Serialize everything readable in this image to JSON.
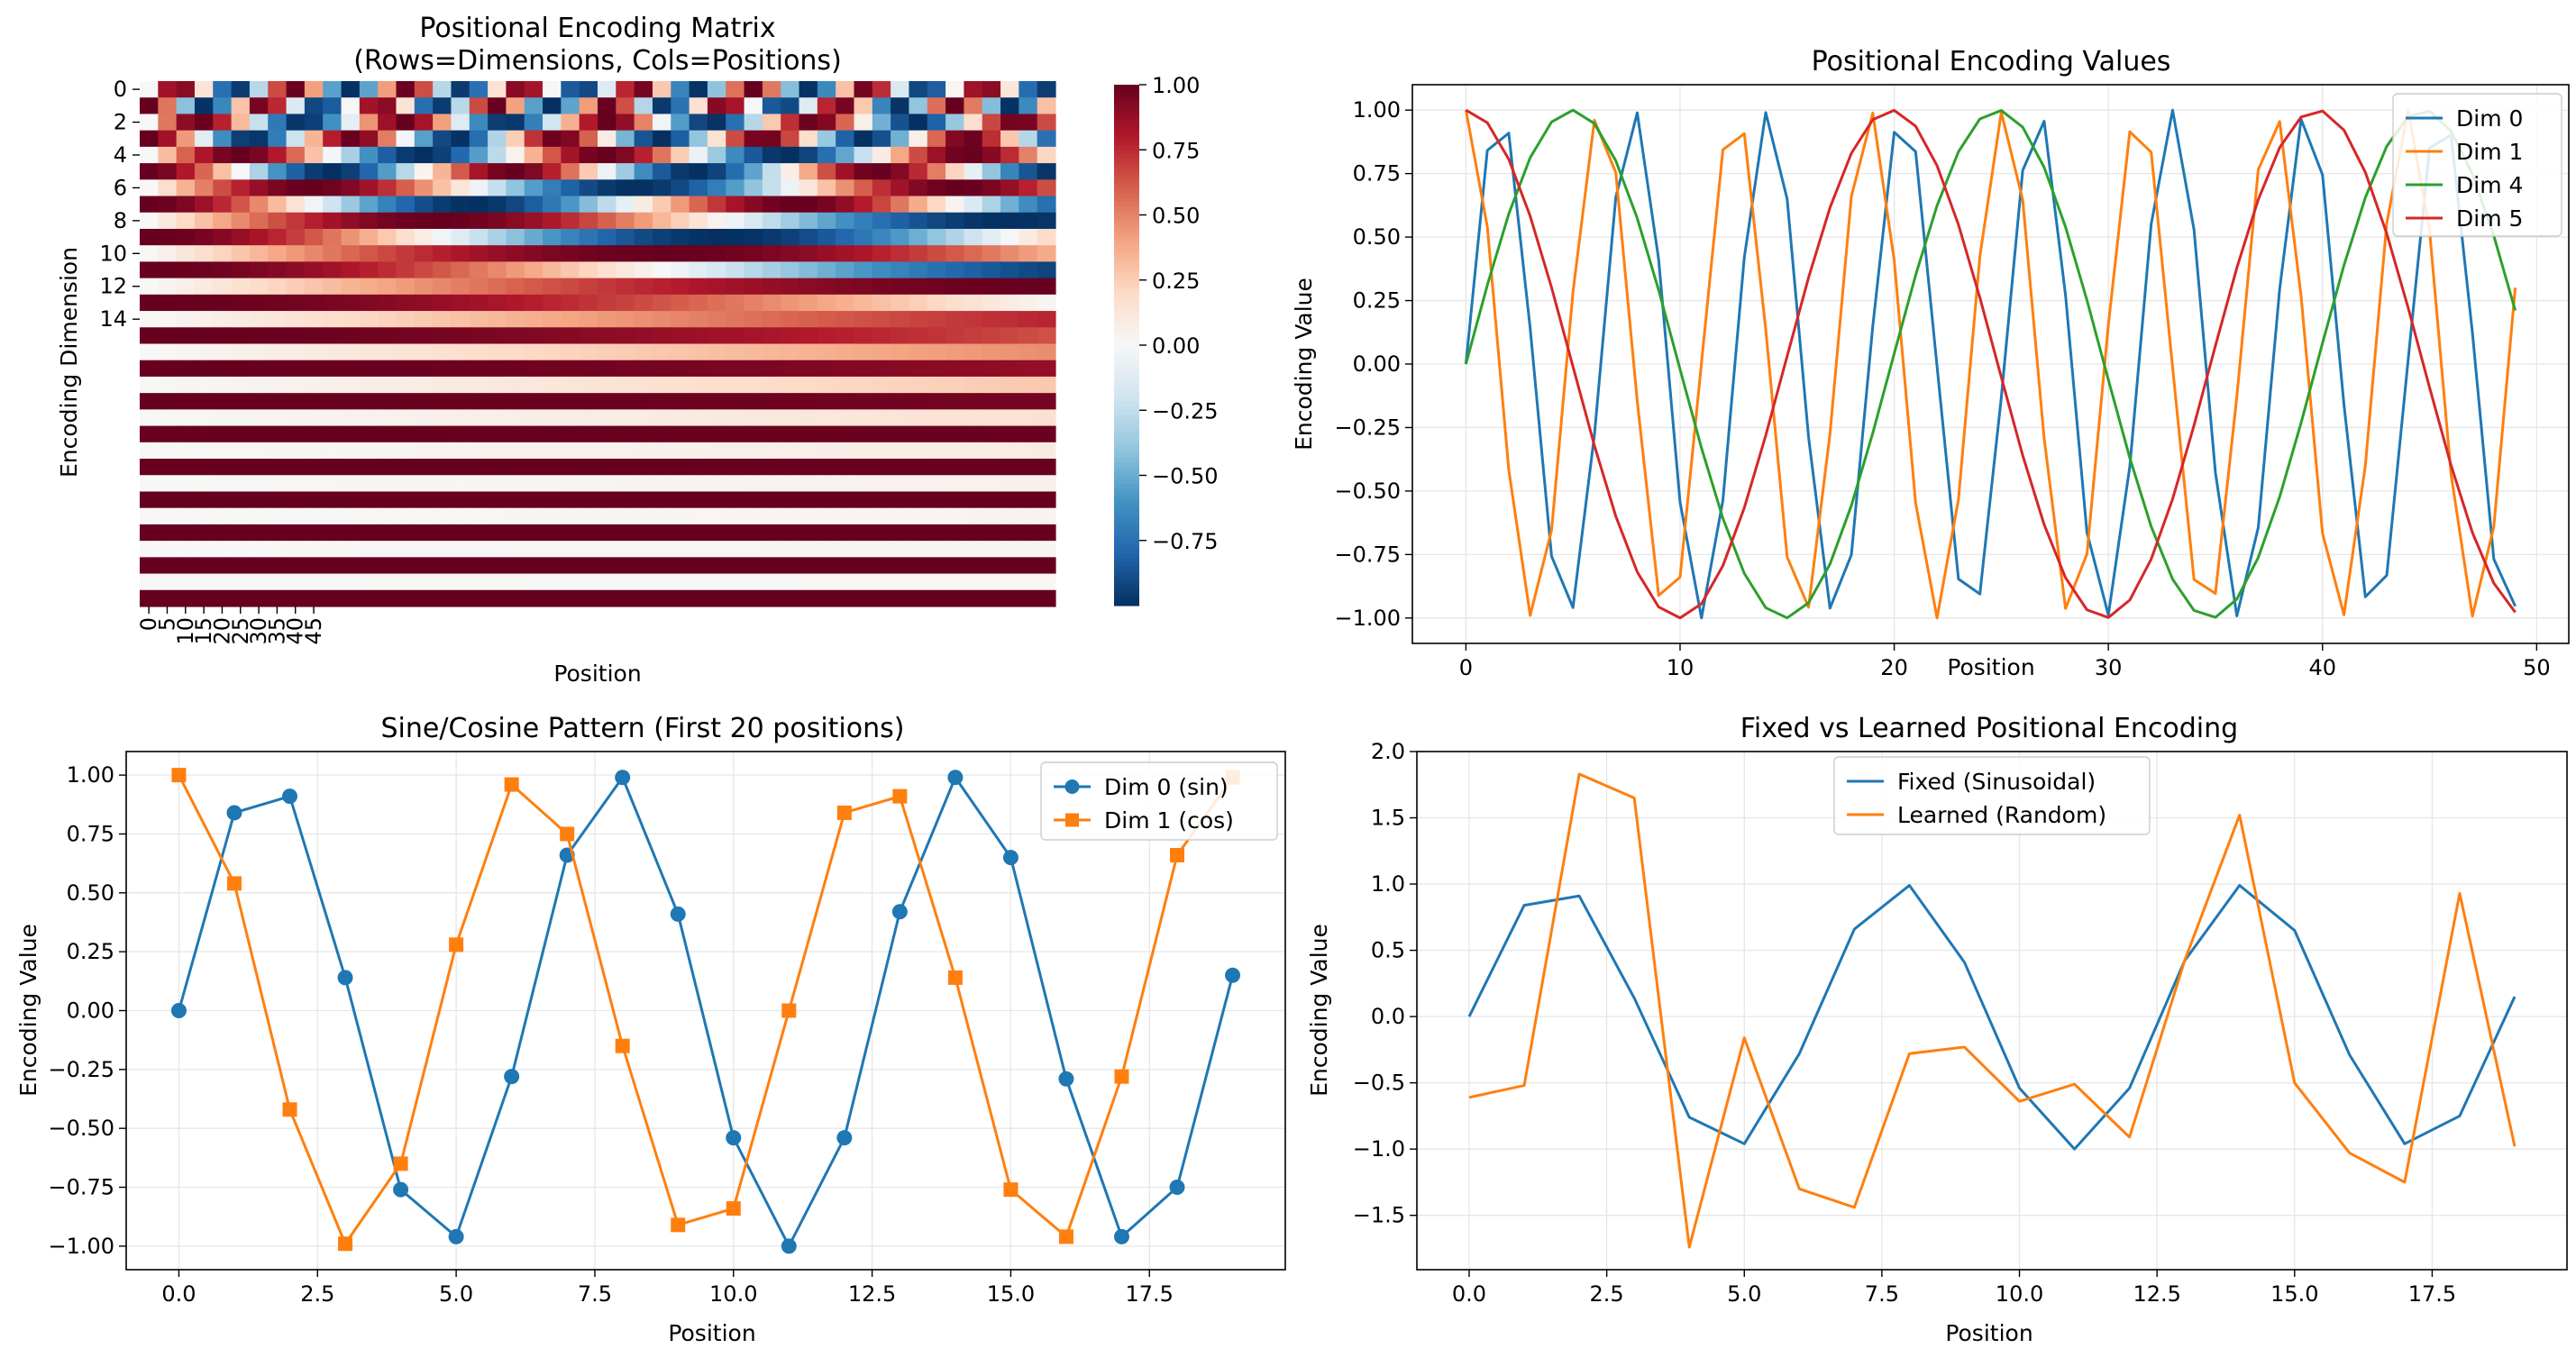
{
  "figure": {
    "heatmap": {
      "type": "heatmap",
      "title_line1": "Positional Encoding Matrix",
      "title_line2": "(Rows=Dimensions, Cols=Positions)",
      "xlabel": "Position",
      "ylabel": "Encoding Dimension",
      "n_rows": 32,
      "n_cols": 50,
      "d_model": 32,
      "ytick_labels": [
        "0",
        "2",
        "4",
        "6",
        "8",
        "10",
        "12",
        "14"
      ],
      "xtick_labels": [
        "0",
        "5",
        "10",
        "15",
        "20",
        "25",
        "30",
        "35",
        "40",
        "45"
      ],
      "colormap": "RdBu_r",
      "colorbar": {
        "ticks": [
          "1.00",
          "0.75",
          "0.50",
          "0.25",
          "0.00",
          "−0.25",
          "−0.50",
          "−0.75"
        ],
        "values": [
          1.0,
          0.75,
          0.5,
          0.25,
          0.0,
          -0.25,
          -0.5,
          -0.75
        ],
        "range": [
          -1.0,
          1.0
        ]
      }
    },
    "values_plot": {
      "type": "line",
      "title": "Positional Encoding Values",
      "xlabel": "Position",
      "ylabel": "Encoding Value",
      "xlim": [
        -2.5,
        51.5
      ],
      "ylim": [
        -1.1,
        1.1
      ],
      "xticks": [
        0,
        10,
        20,
        30,
        40,
        50
      ],
      "xtick_labels": [
        "0",
        "10",
        "20",
        "30",
        "40",
        "50"
      ],
      "yticks": [
        1.0,
        0.75,
        0.5,
        0.25,
        0.0,
        -0.25,
        -0.5,
        -0.75,
        -1.0
      ],
      "ytick_labels": [
        "1.00",
        "0.75",
        "0.50",
        "0.25",
        "0.00",
        "−0.25",
        "−0.50",
        "−0.75",
        "−1.00"
      ],
      "grid": true,
      "legend": "top-right",
      "positions": 50,
      "series": [
        {
          "name": "Dim 0",
          "color": "#1f77b4",
          "func": "sin",
          "freq_exp": 0
        },
        {
          "name": "Dim 1",
          "color": "#ff7f0e",
          "func": "cos",
          "freq_exp": 0
        },
        {
          "name": "Dim 4",
          "color": "#2ca02c",
          "func": "sin",
          "freq_exp": 4
        },
        {
          "name": "Dim 5",
          "color": "#d62728",
          "func": "cos",
          "freq_exp": 4
        }
      ]
    },
    "sincos_plot": {
      "type": "line",
      "title": "Sine/Cosine Pattern (First 20 positions)",
      "xlabel": "Position",
      "ylabel": "Encoding Value",
      "xlim": [
        -0.95,
        19.95
      ],
      "ylim": [
        -1.1,
        1.1
      ],
      "xticks": [
        0,
        2.5,
        5,
        7.5,
        10,
        12.5,
        15,
        17.5
      ],
      "xtick_labels": [
        "0.0",
        "2.5",
        "5.0",
        "7.5",
        "10.0",
        "12.5",
        "15.0",
        "17.5"
      ],
      "yticks": [
        1.0,
        0.75,
        0.5,
        0.25,
        0.0,
        -0.25,
        -0.5,
        -0.75,
        -1.0
      ],
      "ytick_labels": [
        "1.00",
        "0.75",
        "0.50",
        "0.25",
        "0.00",
        "−0.25",
        "−0.50",
        "−0.75",
        "−1.00"
      ],
      "grid": true,
      "legend": "top-right",
      "x": [
        0,
        1,
        2,
        3,
        4,
        5,
        6,
        7,
        8,
        9,
        10,
        11,
        12,
        13,
        14,
        15,
        16,
        17,
        18,
        19
      ],
      "series": [
        {
          "name": "Dim 0 (sin)",
          "color": "#1f77b4",
          "marker": "circle",
          "values": [
            0.0,
            0.84,
            0.91,
            0.14,
            -0.76,
            -0.96,
            -0.28,
            0.66,
            0.99,
            0.41,
            -0.54,
            -1.0,
            -0.54,
            0.42,
            0.99,
            0.65,
            -0.29,
            -0.96,
            -0.75,
            0.15
          ]
        },
        {
          "name": "Dim 1 (cos)",
          "color": "#ff7f0e",
          "marker": "square",
          "values": [
            1.0,
            0.54,
            -0.42,
            -0.99,
            -0.65,
            0.28,
            0.96,
            0.75,
            -0.15,
            -0.91,
            -0.84,
            0.0,
            0.84,
            0.91,
            0.14,
            -0.76,
            -0.96,
            -0.28,
            0.66,
            0.99
          ]
        }
      ]
    },
    "fixed_plot": {
      "type": "line",
      "title": "Fixed vs Learned Positional Encoding",
      "xlabel": "Position",
      "ylabel": "Encoding Value",
      "xlim": [
        -0.95,
        19.95
      ],
      "ylim": [
        -1.91,
        2.0
      ],
      "xticks": [
        0,
        2.5,
        5,
        7.5,
        10,
        12.5,
        15,
        17.5
      ],
      "xtick_labels": [
        "0.0",
        "2.5",
        "5.0",
        "7.5",
        "10.0",
        "12.5",
        "15.0",
        "17.5"
      ],
      "yticks": [
        2.0,
        1.5,
        1.0,
        0.5,
        0.0,
        -0.5,
        -1.0,
        -1.5
      ],
      "ytick_labels": [
        "2.0",
        "1.5",
        "1.0",
        "0.5",
        "0.0",
        "−0.5",
        "−1.0",
        "−1.5"
      ],
      "grid": true,
      "legend": "top-center",
      "x": [
        0,
        1,
        2,
        3,
        4,
        5,
        6,
        7,
        8,
        9,
        10,
        11,
        12,
        13,
        14,
        15,
        16,
        17,
        18,
        19
      ],
      "series": [
        {
          "name": "Fixed (Sinusoidal)",
          "color": "#1f77b4",
          "values": [
            0.0,
            0.84,
            0.91,
            0.14,
            -0.76,
            -0.96,
            -0.28,
            0.66,
            0.99,
            0.41,
            -0.54,
            -1.0,
            -0.54,
            0.42,
            0.99,
            0.65,
            -0.29,
            -0.96,
            -0.75,
            0.15
          ]
        },
        {
          "name": "Learned (Random)",
          "color": "#ff7f0e",
          "values": [
            -0.61,
            -0.52,
            1.83,
            1.65,
            -1.74,
            -0.16,
            -1.3,
            -1.44,
            -0.28,
            -0.23,
            -0.64,
            -0.51,
            -0.91,
            0.42,
            1.52,
            -0.5,
            -1.03,
            -1.25,
            0.93,
            -0.98
          ]
        }
      ]
    }
  }
}
